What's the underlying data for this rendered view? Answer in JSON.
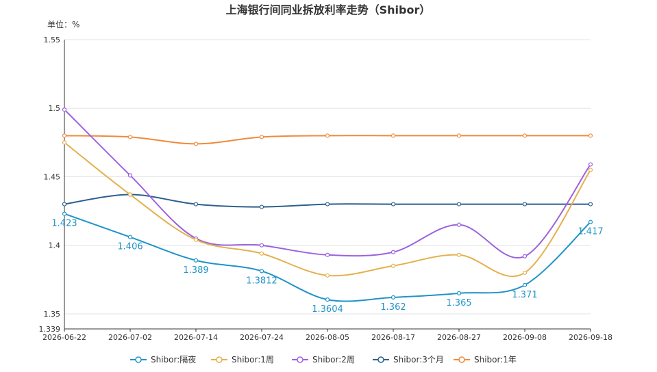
{
  "chart_data": {
    "type": "line",
    "title": "上海银行间同业拆放利率走势（Shibor）",
    "unit_label": "单位：%",
    "xlabel": "",
    "ylabel": "",
    "x_tick_labels": [
      "2026-06-22",
      "2026-07-02",
      "2026-07-14",
      "2026-07-24",
      "2026-08-05",
      "2026-08-17",
      "2026-08-27",
      "2026-09-08",
      "2026-09-18"
    ],
    "y_tick_labels": [
      "1.339",
      "1.35",
      "1.4",
      "1.45",
      "1.5",
      "1.55"
    ],
    "ylim": [
      1.339,
      1.55
    ],
    "grid": "horizontal",
    "legend_position": "bottom",
    "x": [
      "2026-06-22",
      "2026-07-02",
      "2026-07-14",
      "2026-07-24",
      "2026-08-05",
      "2026-08-17",
      "2026-08-27",
      "2026-09-08",
      "2026-09-18"
    ],
    "series": [
      {
        "name": "Shibor:隔夜",
        "color": "#1f93c8",
        "values": [
          1.423,
          1.406,
          1.389,
          1.3812,
          1.3604,
          1.362,
          1.365,
          1.371,
          1.417
        ]
      },
      {
        "name": "Shibor:1周",
        "color": "#e5b04c",
        "values": [
          1.475,
          1.437,
          1.404,
          1.394,
          1.378,
          1.385,
          1.393,
          1.38,
          1.455
        ]
      },
      {
        "name": "Shibor:2周",
        "color": "#9c62de",
        "values": [
          1.499,
          1.451,
          1.405,
          1.4,
          1.393,
          1.395,
          1.415,
          1.392,
          1.459
        ]
      },
      {
        "name": "Shibor:3个月",
        "color": "#2d5f8d",
        "values": [
          1.43,
          1.437,
          1.43,
          1.428,
          1.43,
          1.43,
          1.43,
          1.43,
          1.43
        ]
      },
      {
        "name": "Shibor:1年",
        "color": "#ee8a3c",
        "values": [
          1.48,
          1.479,
          1.474,
          1.479,
          1.48,
          1.48,
          1.48,
          1.48,
          1.48
        ]
      }
    ],
    "data_labels": {
      "series": "Shibor:隔夜",
      "values": [
        "1.423",
        "1.406",
        "1.389",
        "1.3812",
        "1.3604",
        "1.362",
        "1.365",
        "1.371",
        "1.417"
      ]
    }
  }
}
